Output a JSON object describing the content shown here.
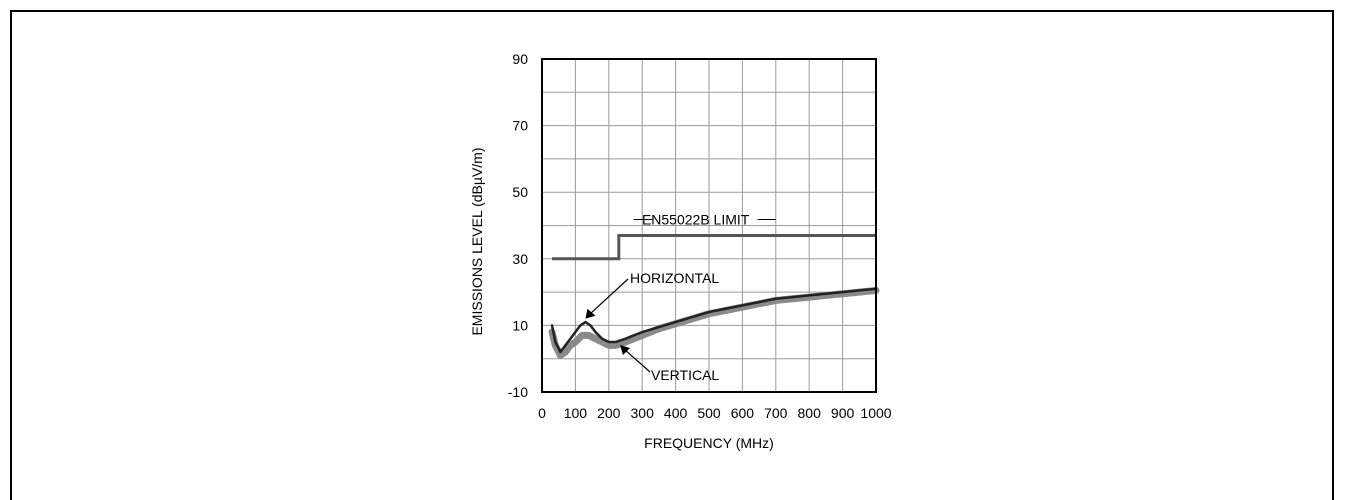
{
  "chart_data": {
    "type": "line",
    "title": "",
    "xlabel": "FREQUENCY (MHz)",
    "ylabel": "EMISSIONS LEVEL (dBµV/m)",
    "xlim": [
      0,
      1000
    ],
    "ylim": [
      -10,
      90
    ],
    "x_ticks": [
      "0",
      "100",
      "200",
      "300",
      "400",
      "500",
      "600",
      "700",
      "800",
      "900",
      "1000"
    ],
    "y_ticks": [
      "-10",
      "10",
      "30",
      "50",
      "70",
      "90"
    ],
    "grid": true,
    "series": [
      {
        "name": "EN55022B LIMIT",
        "color": "#555555",
        "x": [
          30,
          230,
          230,
          1000
        ],
        "y": [
          30,
          30,
          37,
          37
        ]
      },
      {
        "name": "HORIZONTAL",
        "color": "#222222",
        "x": [
          30,
          40,
          55,
          70,
          85,
          100,
          115,
          130,
          145,
          160,
          180,
          200,
          220,
          250,
          300,
          350,
          400,
          450,
          500,
          550,
          600,
          650,
          700,
          750,
          800,
          850,
          900,
          950,
          1000
        ],
        "y": [
          10,
          5,
          2,
          4,
          6,
          8,
          10,
          11,
          10,
          8,
          6,
          5,
          5,
          6,
          8,
          9.5,
          11,
          12.5,
          14,
          15,
          16,
          17,
          18,
          18.5,
          19,
          19.5,
          20,
          20.5,
          21
        ]
      },
      {
        "name": "VERTICAL",
        "color": "#8a8a8a",
        "x": [
          30,
          40,
          55,
          70,
          85,
          100,
          120,
          140,
          160,
          180,
          200,
          220,
          250,
          300,
          350,
          400,
          450,
          500,
          550,
          600,
          650,
          700,
          750,
          800,
          850,
          900,
          950,
          1000
        ],
        "y": [
          8,
          4,
          1,
          2,
          4,
          5,
          7,
          7,
          6,
          5,
          4,
          4,
          5,
          7,
          9,
          10.5,
          12,
          13.5,
          14.5,
          15.5,
          16.5,
          17.5,
          18,
          18.5,
          19,
          19.5,
          20,
          20.5
        ]
      }
    ],
    "annotations": [
      {
        "text": "EN55022B LIMIT",
        "x": 460,
        "y": 37
      },
      {
        "text": "HORIZONTAL",
        "x": 130,
        "y": 12
      },
      {
        "text": "VERTICAL",
        "x": 240,
        "y": 4
      }
    ]
  }
}
